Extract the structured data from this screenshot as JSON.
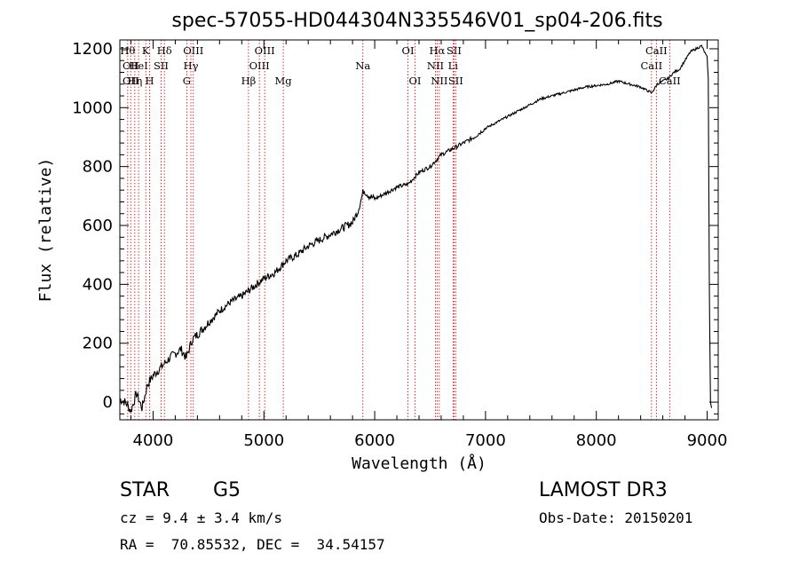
{
  "chart_data": {
    "type": "line",
    "title": "spec-57055-HD044304N335546V01_sp04-206.fits",
    "xlabel": "Wavelength (Å)",
    "ylabel": "Flux (relative)",
    "xlim": [
      3700,
      9100
    ],
    "ylim": [
      -60,
      1230
    ],
    "xticks": [
      4000,
      5000,
      6000,
      7000,
      8000,
      9000
    ],
    "yticks": [
      0,
      200,
      400,
      600,
      800,
      1000,
      1200
    ],
    "grid": false,
    "line_color": "#000000",
    "marker_color": "#cc0000",
    "series": [
      {
        "name": "flux",
        "x": [
          3700,
          3750,
          3800,
          3850,
          3900,
          3950,
          4000,
          4050,
          4100,
          4150,
          4200,
          4250,
          4300,
          4350,
          4400,
          4500,
          4600,
          4700,
          4800,
          4900,
          5000,
          5100,
          5200,
          5300,
          5400,
          5500,
          5600,
          5700,
          5800,
          5850,
          5900,
          5950,
          6000,
          6100,
          6200,
          6300,
          6350,
          6400,
          6450,
          6500,
          6550,
          6600,
          6700,
          6800,
          6900,
          7000,
          7100,
          7200,
          7300,
          7400,
          7500,
          7600,
          7700,
          7800,
          7900,
          8000,
          8100,
          8200,
          8300,
          8400,
          8450,
          8500,
          8550,
          8600,
          8650,
          8700,
          8750,
          8800,
          8850,
          8900,
          8950,
          9000,
          9010,
          9020,
          9030,
          9040
        ],
        "y": [
          10,
          0,
          -30,
          30,
          -20,
          60,
          90,
          110,
          130,
          150,
          165,
          180,
          150,
          210,
          230,
          270,
          310,
          340,
          360,
          390,
          420,
          440,
          480,
          500,
          530,
          550,
          570,
          590,
          610,
          650,
          720,
          700,
          690,
          710,
          730,
          740,
          760,
          780,
          790,
          800,
          820,
          840,
          860,
          880,
          900,
          930,
          950,
          970,
          990,
          1010,
          1030,
          1040,
          1050,
          1060,
          1070,
          1075,
          1080,
          1090,
          1080,
          1070,
          1060,
          1050,
          1080,
          1090,
          1100,
          1120,
          1130,
          1160,
          1190,
          1200,
          1210,
          1170,
          1100,
          400,
          0,
          -20
        ]
      }
    ],
    "spectral_lines": [
      {
        "wl": 3771,
        "label": "Hθ",
        "row": 0
      },
      {
        "wl": 3798,
        "label": "OII",
        "row": 1
      },
      {
        "wl": 3798,
        "label": "OII",
        "row": 2
      },
      {
        "wl": 3835,
        "label": "Hη",
        "row": 2
      },
      {
        "wl": 3869,
        "label": "HeI",
        "row": 1
      },
      {
        "wl": 3934,
        "label": "K",
        "row": 0
      },
      {
        "wl": 3969,
        "label": "H",
        "row": 2
      },
      {
        "wl": 4072,
        "label": "SII",
        "row": 1
      },
      {
        "wl": 4102,
        "label": "Hδ",
        "row": 0
      },
      {
        "wl": 4304,
        "label": "G",
        "row": 2
      },
      {
        "wl": 4341,
        "label": "Hγ",
        "row": 1
      },
      {
        "wl": 4363,
        "label": "OIII",
        "row": 0
      },
      {
        "wl": 4861,
        "label": "Hβ",
        "row": 2
      },
      {
        "wl": 4959,
        "label": "OIII",
        "row": 1
      },
      {
        "wl": 5007,
        "label": "OIII",
        "row": 0
      },
      {
        "wl": 5175,
        "label": "Mg",
        "row": 2
      },
      {
        "wl": 5893,
        "label": "Na",
        "row": 1
      },
      {
        "wl": 6300,
        "label": "OI",
        "row": 0
      },
      {
        "wl": 6364,
        "label": "OI",
        "row": 2
      },
      {
        "wl": 6548,
        "label": "NII",
        "row": 1
      },
      {
        "wl": 6563,
        "label": "Hα",
        "row": 0
      },
      {
        "wl": 6583,
        "label": "NII",
        "row": 2
      },
      {
        "wl": 6707,
        "label": "Li",
        "row": 1
      },
      {
        "wl": 6716,
        "label": "SII",
        "row": 0
      },
      {
        "wl": 6731,
        "label": "SII",
        "row": 2
      },
      {
        "wl": 8498,
        "label": "CaII",
        "row": 1
      },
      {
        "wl": 8542,
        "label": "CaII",
        "row": 0
      },
      {
        "wl": 8662,
        "label": "CaII",
        "row": 2
      }
    ]
  },
  "info": {
    "object_class": "STAR",
    "subclass": "G5",
    "survey": "LAMOST DR3",
    "redshift": "cz = 9.4 ± 3.4 km/s",
    "obs_date": "Obs-Date: 20150201",
    "coords": "RA =  70.85532, DEC =  34.54157"
  }
}
